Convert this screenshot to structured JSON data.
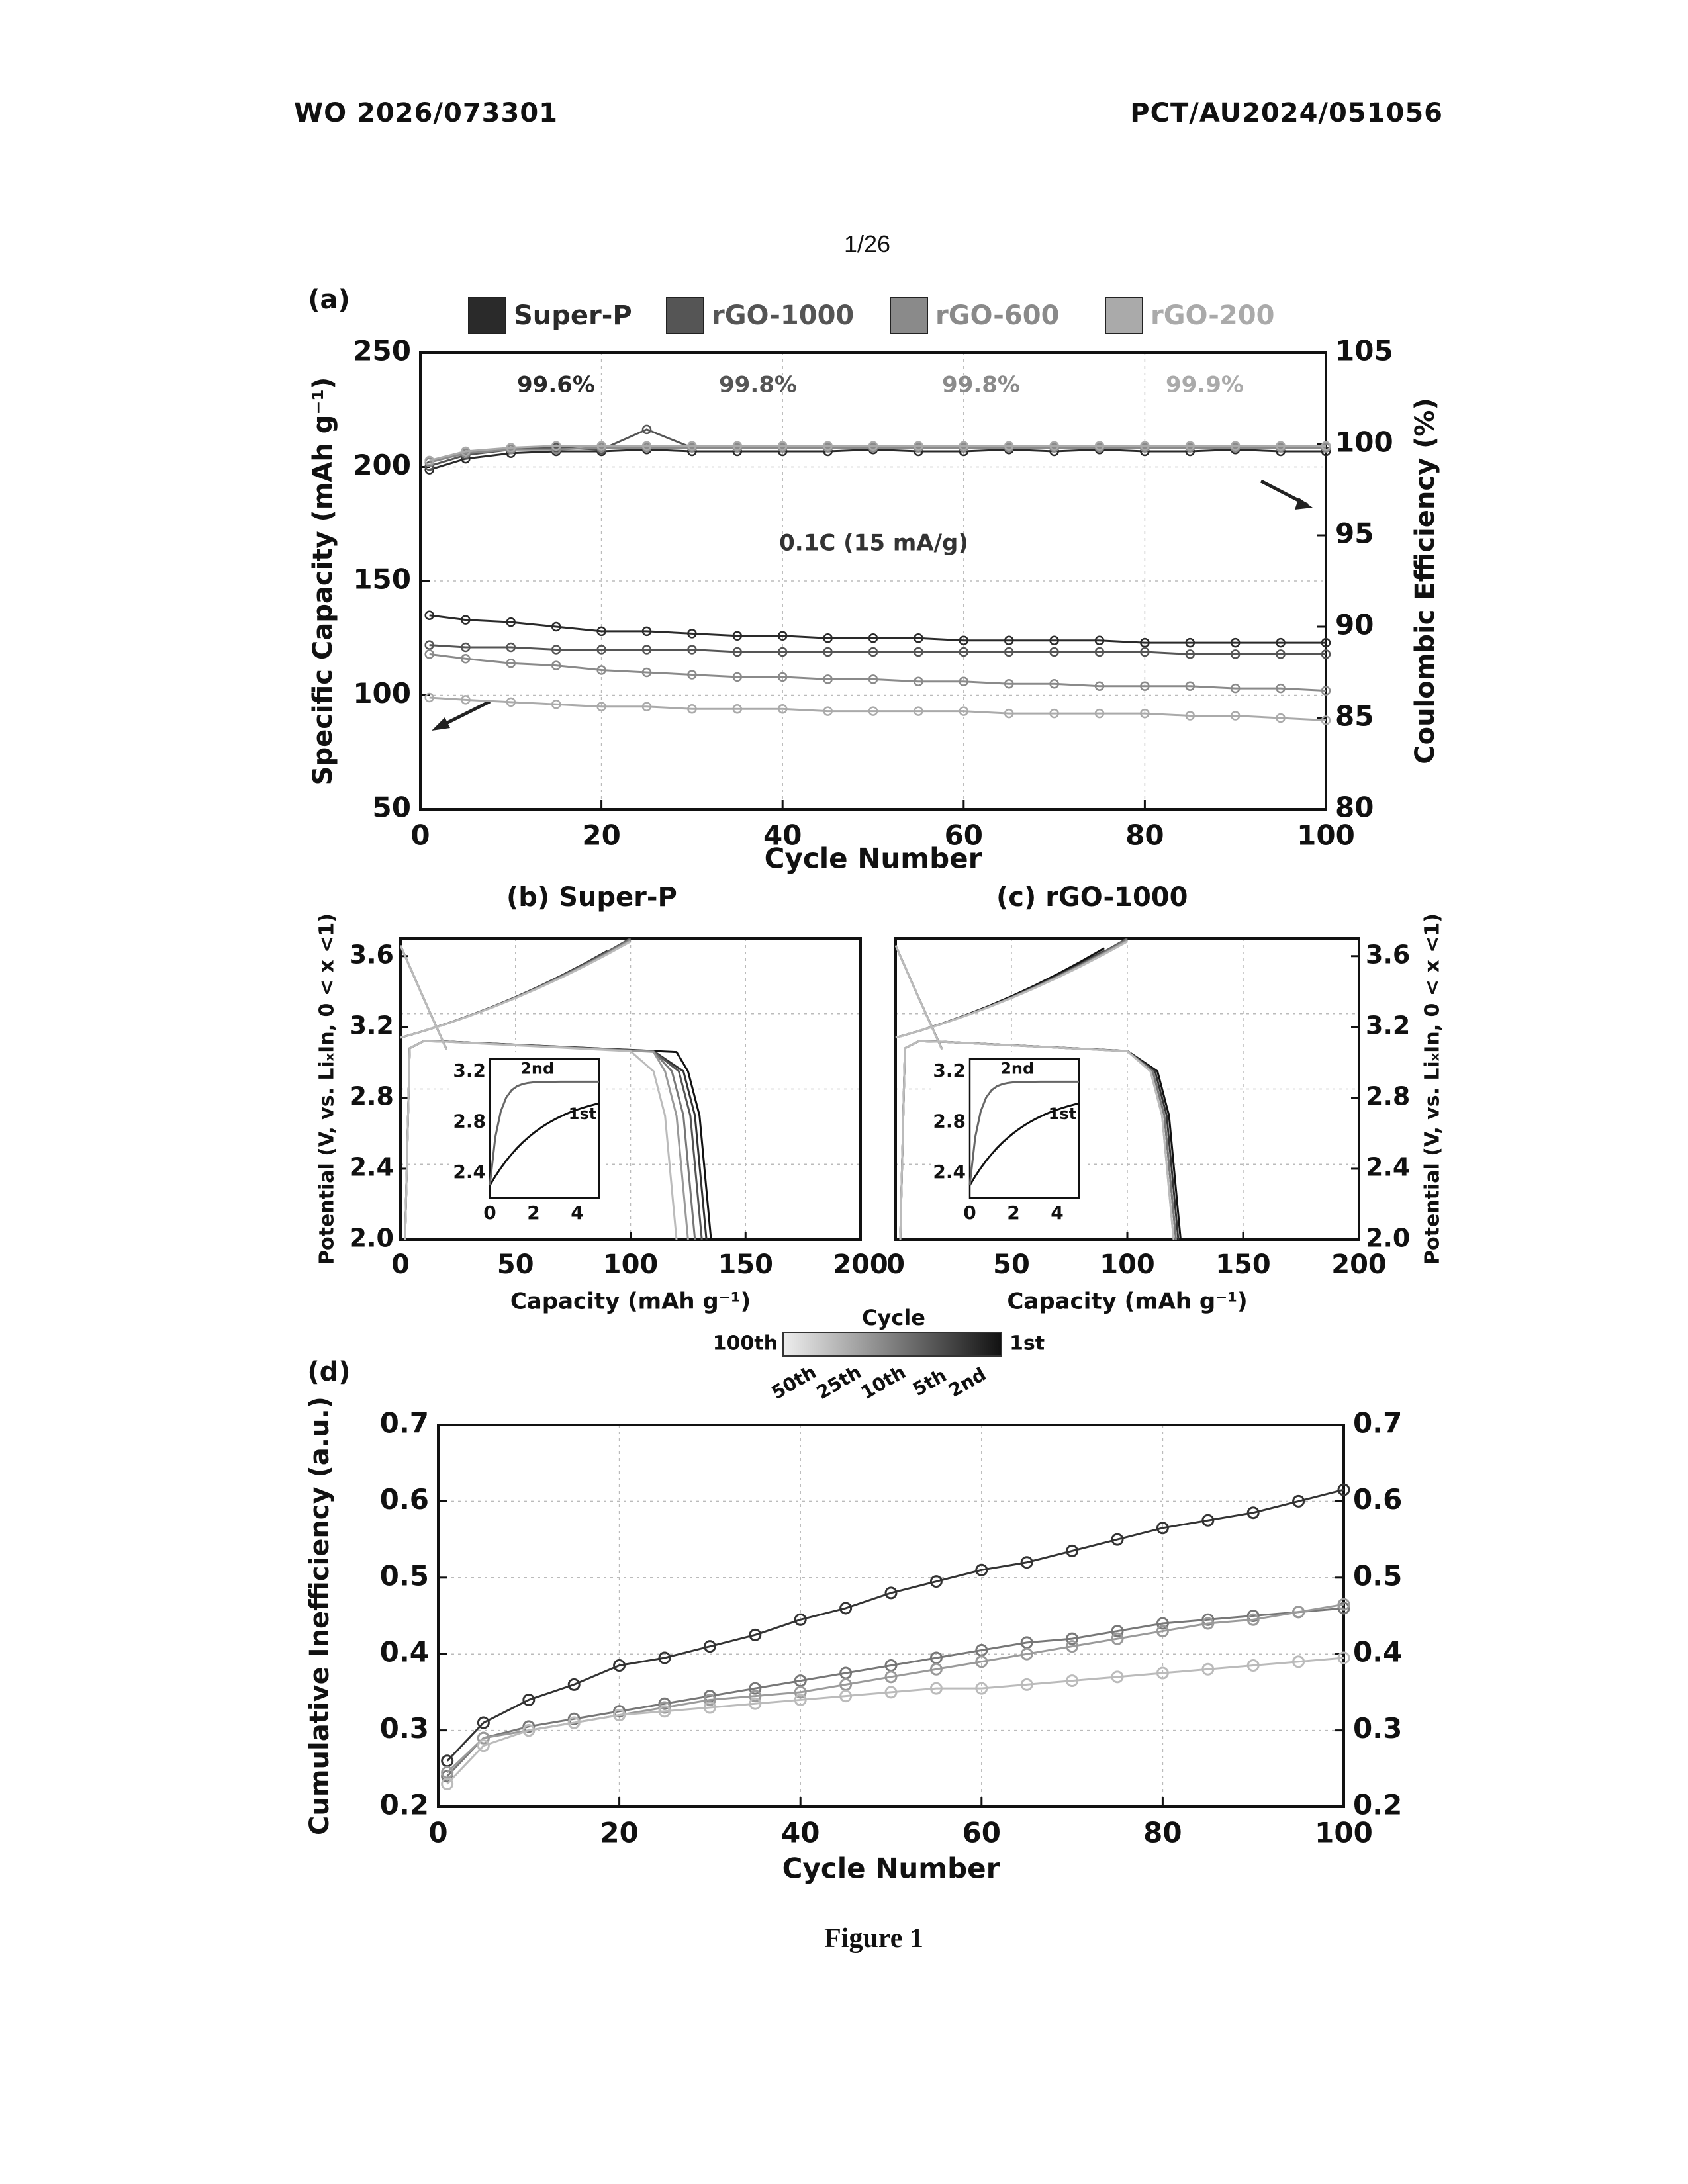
{
  "header": {
    "left": "WO 2026/073301",
    "right": "PCT/AU2024/051056"
  },
  "page_number": "1/26",
  "figure_caption": "Figure 1",
  "chart_data": [
    {
      "panel": "(a)",
      "type": "line",
      "xlabel": "Cycle Number",
      "ylabel": "Specific Capacity (mAh g⁻¹)",
      "y2label": "Coulombic Efficiency (%)",
      "xlim": [
        0,
        100
      ],
      "ylim": [
        50,
        250
      ],
      "y2lim": [
        80,
        105
      ],
      "xticks": [
        "0",
        "20",
        "40",
        "60",
        "80",
        "100"
      ],
      "yticks": [
        "50",
        "100",
        "150",
        "200",
        "250"
      ],
      "y2ticks": [
        "80",
        "85",
        "90",
        "95",
        "100",
        "105"
      ],
      "legend": [
        "Super-P",
        "rGO-1000",
        "rGO-600",
        "rGO-200"
      ],
      "legend_position": "top",
      "annotations": [
        "99.6%",
        "99.8%",
        "99.8%",
        "99.9%",
        "0.1C (15 mA/g)"
      ],
      "grid": true,
      "x": [
        1,
        5,
        10,
        15,
        20,
        25,
        30,
        35,
        40,
        45,
        50,
        55,
        60,
        65,
        70,
        75,
        80,
        85,
        90,
        95,
        100
      ],
      "series": [
        {
          "name": "Super-P",
          "axis": "left",
          "color": "#2a2a2a",
          "values": [
            135,
            133,
            132,
            130,
            128,
            128,
            127,
            126,
            126,
            125,
            125,
            125,
            124,
            124,
            124,
            124,
            123,
            123,
            123,
            123,
            123
          ]
        },
        {
          "name": "rGO-1000",
          "axis": "left",
          "color": "#555555",
          "values": [
            122,
            121,
            121,
            120,
            120,
            120,
            120,
            119,
            119,
            119,
            119,
            119,
            119,
            119,
            119,
            119,
            119,
            118,
            118,
            118,
            118
          ]
        },
        {
          "name": "rGO-600",
          "axis": "left",
          "color": "#8a8a8a",
          "values": [
            118,
            116,
            114,
            113,
            111,
            110,
            109,
            108,
            108,
            107,
            107,
            106,
            106,
            105,
            105,
            104,
            104,
            104,
            103,
            103,
            102
          ]
        },
        {
          "name": "rGO-200",
          "axis": "left",
          "color": "#aaaaaa",
          "values": [
            99,
            98,
            97,
            96,
            95,
            95,
            94,
            94,
            94,
            93,
            93,
            93,
            93,
            92,
            92,
            92,
            92,
            91,
            91,
            90,
            89
          ]
        },
        {
          "name": "Super-P",
          "axis": "right",
          "color": "#2a2a2a",
          "values": [
            98.6,
            99.2,
            99.5,
            99.6,
            99.6,
            99.7,
            99.6,
            99.6,
            99.6,
            99.6,
            99.7,
            99.6,
            99.6,
            99.7,
            99.6,
            99.7,
            99.6,
            99.6,
            99.7,
            99.6,
            99.6
          ]
        },
        {
          "name": "rGO-1000",
          "axis": "right",
          "color": "#555555",
          "values": [
            98.8,
            99.4,
            99.7,
            99.8,
            99.7,
            100.8,
            99.8,
            99.8,
            99.8,
            99.8,
            99.8,
            99.8,
            99.8,
            99.8,
            99.8,
            99.8,
            99.8,
            99.8,
            99.8,
            99.8,
            99.8
          ]
        },
        {
          "name": "rGO-600",
          "axis": "right",
          "color": "#8a8a8a",
          "values": [
            99.0,
            99.5,
            99.7,
            99.7,
            99.8,
            99.8,
            99.8,
            99.8,
            99.8,
            99.8,
            99.8,
            99.8,
            99.8,
            99.8,
            99.8,
            99.8,
            99.8,
            99.8,
            99.8,
            99.8,
            99.8
          ]
        },
        {
          "name": "rGO-200",
          "axis": "right",
          "color": "#aaaaaa",
          "values": [
            99.1,
            99.6,
            99.8,
            99.9,
            99.9,
            99.9,
            99.9,
            99.9,
            99.9,
            99.9,
            99.9,
            99.9,
            99.9,
            99.9,
            99.9,
            99.9,
            99.9,
            99.9,
            99.9,
            99.9,
            99.9
          ]
        }
      ]
    },
    {
      "panel": "(b)",
      "title": "Super-P",
      "type": "line",
      "xlabel": "Capacity (mAh g⁻¹)",
      "ylabel": "Potential (V, vs. LiₓIn, 0 < x <1)",
      "xlim": [
        0,
        200
      ],
      "ylim": [
        2.0,
        3.7
      ],
      "xticks": [
        "0",
        "50",
        "100",
        "150",
        "200"
      ],
      "yticks": [
        "2.0",
        "2.4",
        "2.8",
        "3.2",
        "3.6"
      ],
      "discharge_end_capacity": [
        135,
        133,
        131,
        128,
        125,
        120
      ],
      "charge_slope": [
        3.3,
        3.6,
        3.5,
        3.4,
        3.3,
        3.2
      ],
      "inset": {
        "xticks": [
          "0",
          "2",
          "4"
        ],
        "yticks": [
          "2.4",
          "2.8",
          "3.2"
        ],
        "labels": [
          "2nd",
          "1st"
        ]
      }
    },
    {
      "panel": "(c)",
      "title": "rGO-1000",
      "type": "line",
      "xlabel": "Capacity (mAh g⁻¹)",
      "ylabel": "Potential (V, vs. LiₓIn, 0 < x <1)",
      "xlim": [
        0,
        200
      ],
      "ylim": [
        2.0,
        3.7
      ],
      "xticks": [
        "0",
        "50",
        "100",
        "150",
        "200"
      ],
      "yticks": [
        "2.0",
        "2.4",
        "2.8",
        "3.2",
        "3.6"
      ],
      "discharge_end_capacity": [
        123,
        122,
        121,
        121,
        120,
        120
      ],
      "charge_slope": [
        3.9,
        3.6,
        3.5,
        3.4,
        3.3,
        3.2
      ],
      "inset": {
        "xticks": [
          "0",
          "2",
          "4"
        ],
        "yticks": [
          "2.4",
          "2.8",
          "3.2"
        ],
        "labels": [
          "2nd",
          "1st"
        ]
      }
    },
    {
      "panel": "colorbar",
      "title": "Cycle",
      "left_label": "100th",
      "right_label": "1st",
      "ticks": [
        "50th",
        "25th",
        "10th",
        "5th",
        "2nd"
      ]
    },
    {
      "panel": "(d)",
      "type": "scatter",
      "xlabel": "Cycle Number",
      "ylabel": "Cumulative Inefficiency (a.u.)",
      "xlim": [
        0,
        100
      ],
      "ylim": [
        0.2,
        0.7
      ],
      "xticks": [
        "0",
        "20",
        "40",
        "60",
        "80",
        "100"
      ],
      "yticks": [
        "0.2",
        "0.3",
        "0.4",
        "0.5",
        "0.6",
        "0.7"
      ],
      "grid": true,
      "x": [
        1,
        5,
        10,
        15,
        20,
        25,
        30,
        35,
        40,
        45,
        50,
        55,
        60,
        65,
        70,
        75,
        80,
        85,
        90,
        95,
        100
      ],
      "series": [
        {
          "color": "#333333",
          "values": [
            0.26,
            0.31,
            0.34,
            0.36,
            0.385,
            0.395,
            0.41,
            0.425,
            0.445,
            0.46,
            0.48,
            0.495,
            0.51,
            0.52,
            0.535,
            0.55,
            0.565,
            0.575,
            0.585,
            0.6,
            0.615
          ]
        },
        {
          "color": "#777777",
          "values": [
            0.24,
            0.29,
            0.305,
            0.315,
            0.325,
            0.335,
            0.345,
            0.355,
            0.365,
            0.375,
            0.385,
            0.395,
            0.405,
            0.415,
            0.42,
            0.43,
            0.44,
            0.445,
            0.45,
            0.455,
            0.46
          ]
        },
        {
          "color": "#9a9a9a",
          "values": [
            0.245,
            0.29,
            0.3,
            0.31,
            0.32,
            0.33,
            0.34,
            0.345,
            0.35,
            0.36,
            0.37,
            0.38,
            0.39,
            0.4,
            0.41,
            0.42,
            0.43,
            0.44,
            0.445,
            0.455,
            0.465
          ]
        },
        {
          "color": "#bbbbbb",
          "values": [
            0.23,
            0.28,
            0.3,
            0.31,
            0.32,
            0.325,
            0.33,
            0.335,
            0.34,
            0.345,
            0.35,
            0.355,
            0.355,
            0.36,
            0.365,
            0.37,
            0.375,
            0.38,
            0.385,
            0.39,
            0.395
          ]
        }
      ]
    }
  ]
}
